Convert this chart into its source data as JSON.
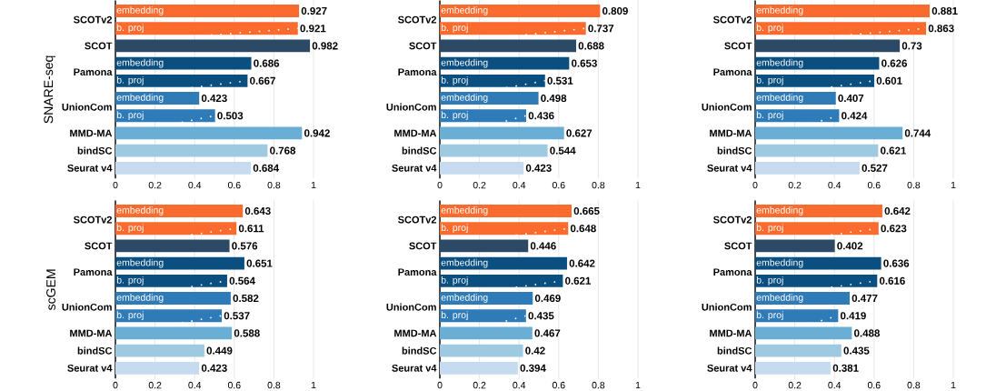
{
  "chart_data": [
    {
      "type": "bar",
      "orientation": "horizontal",
      "ylabel": "SNARE-seq",
      "categories": [
        "SCOTv2",
        "SCOT",
        "Pamona",
        "UnionCom",
        "MMD-MA",
        "bindSC",
        "Seurat v4"
      ],
      "series": [
        {
          "name": "embedding",
          "colors": [
            "#fb6b2d",
            null,
            "#0a4f80",
            "#2f7bb8",
            null,
            null,
            null
          ],
          "values": [
            0.927,
            null,
            0.686,
            0.423,
            null,
            null,
            null
          ]
        },
        {
          "name": "b. proj",
          "colors": [
            "#fb6b2d",
            null,
            "#0a4f80",
            "#2f7bb8",
            null,
            null,
            null
          ],
          "values": [
            0.921,
            null,
            0.667,
            0.503,
            null,
            null,
            null
          ]
        },
        {
          "colors": [
            null,
            "#2c4a66",
            null,
            null,
            "#6aaed6",
            "#9ecae1",
            "#c6dbef"
          ],
          "values": [
            null,
            0.982,
            null,
            null,
            0.942,
            0.768,
            0.684
          ]
        }
      ],
      "xlim": [
        0,
        1
      ],
      "xticks": [
        0,
        0.2,
        0.4,
        0.6,
        0.8,
        1
      ],
      "grid": "x",
      "data_labels": true
    },
    {
      "type": "bar",
      "orientation": "horizontal",
      "categories": [
        "SCOTv2",
        "SCOT",
        "Pamona",
        "UnionCom",
        "MMD-MA",
        "bindSC",
        "Seurat v4"
      ],
      "series": [
        {
          "name": "embedding",
          "colors": [
            "#fb6b2d",
            null,
            "#0a4f80",
            "#2f7bb8",
            null,
            null,
            null
          ],
          "values": [
            0.809,
            null,
            0.653,
            0.498,
            null,
            null,
            null
          ]
        },
        {
          "name": "b. proj",
          "colors": [
            "#fb6b2d",
            null,
            "#0a4f80",
            "#2f7bb8",
            null,
            null,
            null
          ],
          "values": [
            0.737,
            null,
            0.531,
            0.436,
            null,
            null,
            null
          ]
        },
        {
          "colors": [
            null,
            "#2c4a66",
            null,
            null,
            "#6aaed6",
            "#9ecae1",
            "#c6dbef"
          ],
          "values": [
            null,
            0.688,
            null,
            null,
            0.627,
            0.544,
            0.423
          ]
        }
      ],
      "xlim": [
        0,
        1
      ],
      "xticks": [
        0,
        0.2,
        0.4,
        0.6,
        0.8,
        1
      ],
      "grid": "x",
      "data_labels": true
    },
    {
      "type": "bar",
      "orientation": "horizontal",
      "categories": [
        "SCOTv2",
        "SCOT",
        "Pamona",
        "UnionCom",
        "MMD-MA",
        "bindSC",
        "Seurat v4"
      ],
      "series": [
        {
          "name": "embedding",
          "colors": [
            "#fb6b2d",
            null,
            "#0a4f80",
            "#2f7bb8",
            null,
            null,
            null
          ],
          "values": [
            0.881,
            null,
            0.626,
            0.407,
            null,
            null,
            null
          ]
        },
        {
          "name": "b. proj",
          "colors": [
            "#fb6b2d",
            null,
            "#0a4f80",
            "#2f7bb8",
            null,
            null,
            null
          ],
          "values": [
            0.863,
            null,
            0.601,
            0.424,
            null,
            null,
            null
          ]
        },
        {
          "colors": [
            null,
            "#2c4a66",
            null,
            null,
            "#6aaed6",
            "#9ecae1",
            "#c6dbef"
          ],
          "values": [
            null,
            0.73,
            null,
            null,
            0.744,
            0.621,
            0.527
          ]
        }
      ],
      "xlim": [
        0,
        1
      ],
      "xticks": [
        0,
        0.2,
        0.4,
        0.6,
        0.8,
        1
      ],
      "grid": "x",
      "data_labels": true
    },
    {
      "type": "bar",
      "orientation": "horizontal",
      "ylabel": "scGEM",
      "categories": [
        "SCOTv2",
        "SCOT",
        "Pamona",
        "UnionCom",
        "MMD-MA",
        "bindSC",
        "Seurat v4"
      ],
      "series": [
        {
          "name": "embedding",
          "colors": [
            "#fb6b2d",
            null,
            "#0a4f80",
            "#2f7bb8",
            null,
            null,
            null
          ],
          "values": [
            0.643,
            null,
            0.651,
            0.582,
            null,
            null,
            null
          ]
        },
        {
          "name": "b. proj",
          "colors": [
            "#fb6b2d",
            null,
            "#0a4f80",
            "#2f7bb8",
            null,
            null,
            null
          ],
          "values": [
            0.611,
            null,
            0.564,
            0.537,
            null,
            null,
            null
          ]
        },
        {
          "colors": [
            null,
            "#2c4a66",
            null,
            null,
            "#6aaed6",
            "#9ecae1",
            "#c6dbef"
          ],
          "values": [
            null,
            0.576,
            null,
            null,
            0.588,
            0.449,
            0.423
          ]
        }
      ],
      "xlim": [
        0,
        1
      ],
      "xticks": [
        0,
        0.2,
        0.4,
        0.6,
        0.8,
        1
      ],
      "grid": "x",
      "data_labels": true
    },
    {
      "type": "bar",
      "orientation": "horizontal",
      "categories": [
        "SCOTv2",
        "SCOT",
        "Pamona",
        "UnionCom",
        "MMD-MA",
        "bindSC",
        "Seurat v4"
      ],
      "series": [
        {
          "name": "embedding",
          "colors": [
            "#fb6b2d",
            null,
            "#0a4f80",
            "#2f7bb8",
            null,
            null,
            null
          ],
          "values": [
            0.665,
            null,
            0.642,
            0.469,
            null,
            null,
            null
          ]
        },
        {
          "name": "b. proj",
          "colors": [
            "#fb6b2d",
            null,
            "#0a4f80",
            "#2f7bb8",
            null,
            null,
            null
          ],
          "values": [
            0.648,
            null,
            0.621,
            0.435,
            null,
            null,
            null
          ]
        },
        {
          "colors": [
            null,
            "#2c4a66",
            null,
            null,
            "#6aaed6",
            "#9ecae1",
            "#c6dbef"
          ],
          "values": [
            null,
            0.446,
            null,
            null,
            0.467,
            0.42,
            0.394
          ]
        }
      ],
      "xlim": [
        0,
        1
      ],
      "xticks": [
        0,
        0.2,
        0.4,
        0.6,
        0.8,
        1
      ],
      "grid": "x",
      "data_labels": true
    },
    {
      "type": "bar",
      "orientation": "horizontal",
      "categories": [
        "SCOTv2",
        "SCOT",
        "Pamona",
        "UnionCom",
        "MMD-MA",
        "bindSC",
        "Seurat v4"
      ],
      "series": [
        {
          "name": "embedding",
          "colors": [
            "#fb6b2d",
            null,
            "#0a4f80",
            "#2f7bb8",
            null,
            null,
            null
          ],
          "values": [
            0.642,
            null,
            0.636,
            0.477,
            null,
            null,
            null
          ]
        },
        {
          "name": "b. proj",
          "colors": [
            "#fb6b2d",
            null,
            "#0a4f80",
            "#2f7bb8",
            null,
            null,
            null
          ],
          "values": [
            0.623,
            null,
            0.616,
            0.419,
            null,
            null,
            null
          ]
        },
        {
          "colors": [
            null,
            "#2c4a66",
            null,
            null,
            "#6aaed6",
            "#9ecae1",
            "#c6dbef"
          ],
          "values": [
            null,
            0.402,
            null,
            null,
            0.488,
            0.435,
            0.381
          ]
        }
      ],
      "xlim": [
        0,
        1
      ],
      "xticks": [
        0,
        0.2,
        0.4,
        0.6,
        0.8,
        1
      ],
      "grid": "x",
      "data_labels": true
    }
  ]
}
